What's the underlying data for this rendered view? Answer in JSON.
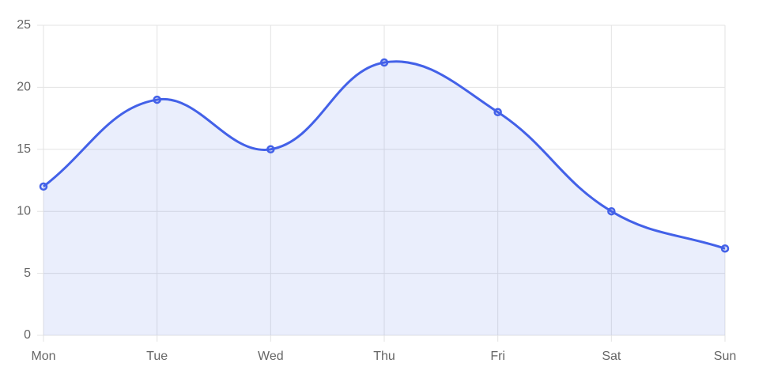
{
  "chart_data": {
    "type": "line",
    "categories": [
      "Mon",
      "Tue",
      "Wed",
      "Thu",
      "Fri",
      "Sat",
      "Sun"
    ],
    "series": [
      {
        "color": "#4361e8",
        "values": [
          12,
          19,
          15,
          22,
          18,
          10,
          7
        ]
      }
    ],
    "ylim": [
      0,
      25
    ],
    "yticks": [
      0,
      5,
      10,
      15,
      20,
      25
    ],
    "grid": true,
    "fill": true,
    "smooth": true
  }
}
